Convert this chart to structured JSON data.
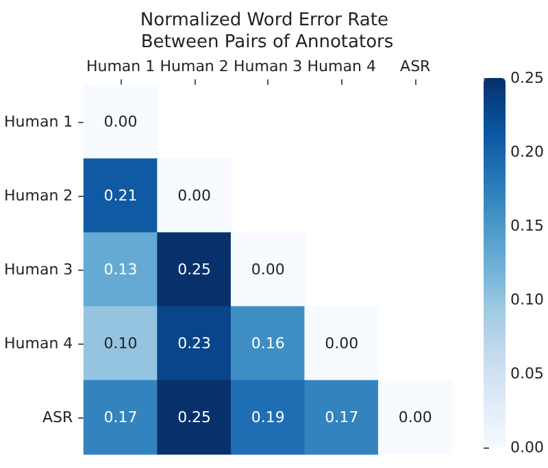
{
  "chart_data": {
    "type": "heatmap",
    "title": "Normalized Word Error Rate Between Pairs of Annotators",
    "categories": [
      "Human 1",
      "Human 2",
      "Human 3",
      "Human 4",
      "ASR"
    ],
    "y_categories": [
      "Human 1",
      "Human 2",
      "Human 3",
      "Human 4",
      "ASR"
    ],
    "cells": [
      [
        0.0,
        null,
        null,
        null,
        null
      ],
      [
        0.21,
        0.0,
        null,
        null,
        null
      ],
      [
        0.13,
        0.25,
        0.0,
        null,
        null
      ],
      [
        0.1,
        0.23,
        0.16,
        0.0,
        null
      ],
      [
        0.17,
        0.25,
        0.19,
        0.17,
        0.0
      ]
    ],
    "cell_labels": [
      [
        "0.00",
        null,
        null,
        null,
        null
      ],
      [
        "0.21",
        "0.00",
        null,
        null,
        null
      ],
      [
        "0.13",
        "0.25",
        "0.00",
        null,
        null
      ],
      [
        "0.10",
        "0.23",
        "0.16",
        "0.00",
        null
      ],
      [
        "0.17",
        "0.25",
        "0.19",
        "0.17",
        "0.00"
      ]
    ],
    "clim": [
      0,
      0.25
    ],
    "cticks": [
      {
        "value": 0,
        "label": "0.00"
      },
      {
        "value": 0.05,
        "label": "0.05"
      },
      {
        "value": 0.1,
        "label": "0.10"
      },
      {
        "value": 0.15,
        "label": "0.15"
      },
      {
        "value": 0.2,
        "label": "0.20"
      },
      {
        "value": 0.25,
        "label": "0.25"
      }
    ]
  }
}
